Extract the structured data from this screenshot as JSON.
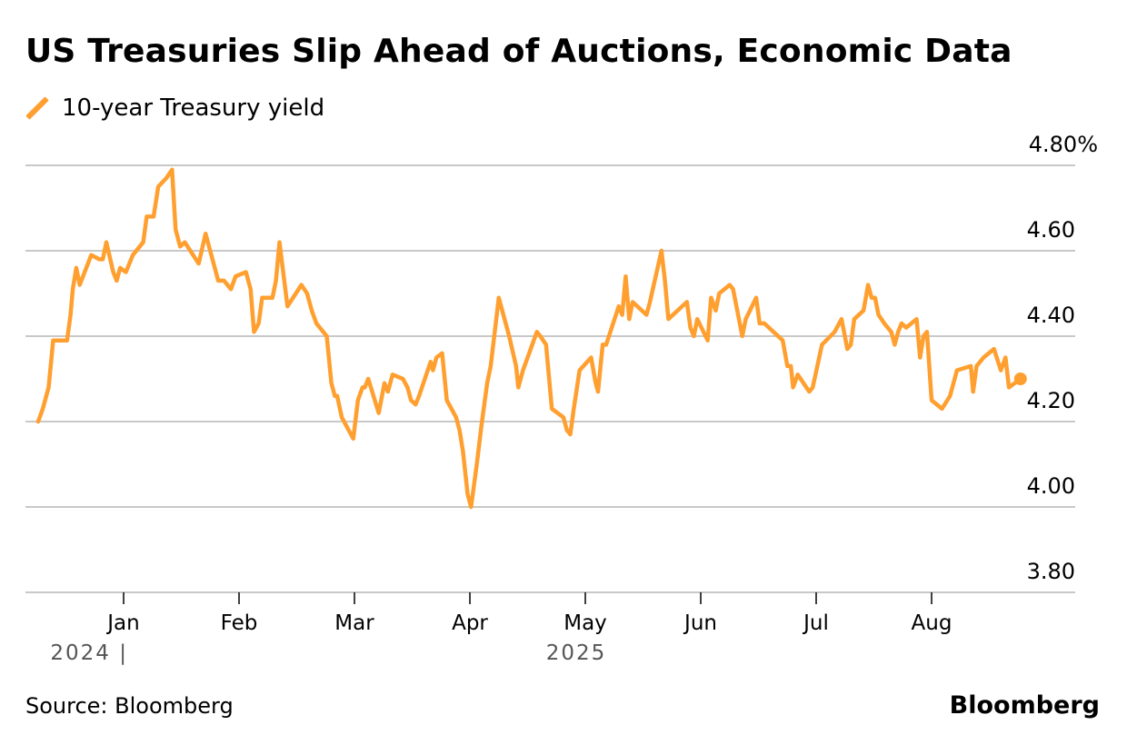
{
  "header": {
    "title": "US Treasuries Slip Ahead of Auctions, Economic Data"
  },
  "footer": {
    "source": "Source: Bloomberg",
    "brand": "Bloomberg"
  },
  "colors": {
    "series": "#ff9f2f",
    "grid": "#c8c8c8",
    "year_label": "#555555"
  },
  "chart_data": {
    "type": "line",
    "title": "US Treasuries Slip Ahead of Auctions, Economic Data",
    "xlabel": "",
    "ylabel": "",
    "y_unit": "%",
    "ylim": [
      3.8,
      4.8
    ],
    "yticks": [
      4.8,
      4.6,
      4.4,
      4.2,
      4.0,
      3.8
    ],
    "ytick_labels": [
      "4.80%",
      "4.60",
      "4.40",
      "4.20",
      "4.00",
      "3.80"
    ],
    "grid": true,
    "legend_position": "top-left",
    "x_axis": {
      "unit": "months since 2025-01-01",
      "range": [
        -0.82,
        8.65
      ],
      "ticks": [
        {
          "label": "Jan",
          "value": 0
        },
        {
          "label": "Feb",
          "value": 1
        },
        {
          "label": "Mar",
          "value": 2
        },
        {
          "label": "Apr",
          "value": 3
        },
        {
          "label": "May",
          "value": 4
        },
        {
          "label": "Jun",
          "value": 5
        },
        {
          "label": "Jul",
          "value": 6
        },
        {
          "label": "Aug",
          "value": 7
        }
      ],
      "year_labels": [
        {
          "label": "2024 |",
          "value": 0,
          "anchor": "end"
        },
        {
          "label": "2025",
          "value": 4,
          "anchor": "middle"
        }
      ]
    },
    "series": [
      {
        "name": "10-year Treasury yield",
        "last_point_marker": true,
        "x": [
          -0.74,
          -0.7,
          -0.65,
          -0.61,
          -0.49,
          -0.46,
          -0.44,
          -0.41,
          -0.38,
          -0.28,
          -0.21,
          -0.18,
          -0.15,
          -0.09,
          -0.06,
          -0.03,
          0.02,
          0.08,
          0.17,
          0.2,
          0.26,
          0.3,
          0.37,
          0.42,
          0.45,
          0.49,
          0.53,
          0.65,
          0.71,
          0.82,
          0.87,
          0.93,
          0.97,
          1.06,
          1.1,
          1.13,
          1.17,
          1.2,
          1.29,
          1.32,
          1.35,
          1.42,
          1.54,
          1.59,
          1.63,
          1.67,
          1.76,
          1.8,
          1.83,
          1.85,
          1.89,
          1.99,
          2.03,
          2.07,
          2.09,
          2.12,
          2.21,
          2.26,
          2.29,
          2.33,
          2.42,
          2.46,
          2.49,
          2.53,
          2.56,
          2.66,
          2.68,
          2.71,
          2.76,
          2.8,
          2.88,
          2.91,
          2.94,
          2.98,
          3.01,
          3.06,
          3.1,
          3.15,
          3.18,
          3.25,
          3.34,
          3.4,
          3.42,
          3.46,
          3.58,
          3.61,
          3.66,
          3.71,
          3.81,
          3.84,
          3.87,
          3.9,
          3.95,
          4.05,
          4.09,
          4.11,
          4.15,
          4.18,
          4.29,
          4.32,
          4.35,
          4.38,
          4.41,
          4.53,
          4.56,
          4.66,
          4.69,
          4.72,
          4.88,
          4.91,
          4.94,
          4.97,
          5.06,
          5.09,
          5.13,
          5.16,
          5.25,
          5.28,
          5.36,
          5.39,
          5.48,
          5.51,
          5.55,
          5.71,
          5.75,
          5.78,
          5.8,
          5.84,
          5.94,
          5.97,
          6.01,
          6.05,
          6.16,
          6.22,
          6.27,
          6.3,
          6.33,
          6.41,
          6.45,
          6.48,
          6.51,
          6.54,
          6.59,
          6.65,
          6.68,
          6.71,
          6.74,
          6.78,
          6.87,
          6.9,
          6.93,
          6.96,
          7.0,
          7.09,
          7.16,
          7.22,
          7.34,
          7.36,
          7.39,
          7.45,
          7.54,
          7.6,
          7.64,
          7.67,
          7.77
        ],
        "y": [
          4.2,
          4.23,
          4.28,
          4.39,
          4.39,
          4.45,
          4.51,
          4.56,
          4.52,
          4.59,
          4.58,
          4.58,
          4.62,
          4.55,
          4.53,
          4.56,
          4.55,
          4.59,
          4.62,
          4.68,
          4.68,
          4.75,
          4.77,
          4.79,
          4.65,
          4.61,
          4.62,
          4.57,
          4.64,
          4.53,
          4.53,
          4.51,
          4.54,
          4.55,
          4.51,
          4.41,
          4.43,
          4.49,
          4.49,
          4.53,
          4.62,
          4.47,
          4.52,
          4.5,
          4.46,
          4.43,
          4.4,
          4.29,
          4.26,
          4.26,
          4.21,
          4.16,
          4.25,
          4.28,
          4.28,
          4.3,
          4.22,
          4.29,
          4.27,
          4.31,
          4.3,
          4.28,
          4.25,
          4.24,
          4.26,
          4.34,
          4.32,
          4.35,
          4.36,
          4.25,
          4.21,
          4.18,
          4.13,
          4.03,
          4.0,
          4.1,
          4.19,
          4.29,
          4.33,
          4.49,
          4.4,
          4.33,
          4.28,
          4.32,
          4.41,
          4.4,
          4.38,
          4.23,
          4.21,
          4.18,
          4.17,
          4.23,
          4.32,
          4.35,
          4.29,
          4.27,
          4.38,
          4.38,
          4.47,
          4.45,
          4.54,
          4.44,
          4.48,
          4.45,
          4.48,
          4.6,
          4.53,
          4.44,
          4.48,
          4.42,
          4.4,
          4.44,
          4.39,
          4.49,
          4.46,
          4.5,
          4.52,
          4.51,
          4.4,
          4.44,
          4.49,
          4.43,
          4.43,
          4.39,
          4.33,
          4.33,
          4.28,
          4.31,
          4.27,
          4.28,
          4.33,
          4.38,
          4.41,
          4.44,
          4.37,
          4.38,
          4.44,
          4.46,
          4.52,
          4.49,
          4.49,
          4.45,
          4.43,
          4.41,
          4.38,
          4.41,
          4.43,
          4.42,
          4.44,
          4.35,
          4.4,
          4.41,
          4.25,
          4.23,
          4.26,
          4.32,
          4.33,
          4.27,
          4.33,
          4.35,
          4.37,
          4.32,
          4.35,
          4.28,
          4.3
        ]
      }
    ]
  }
}
